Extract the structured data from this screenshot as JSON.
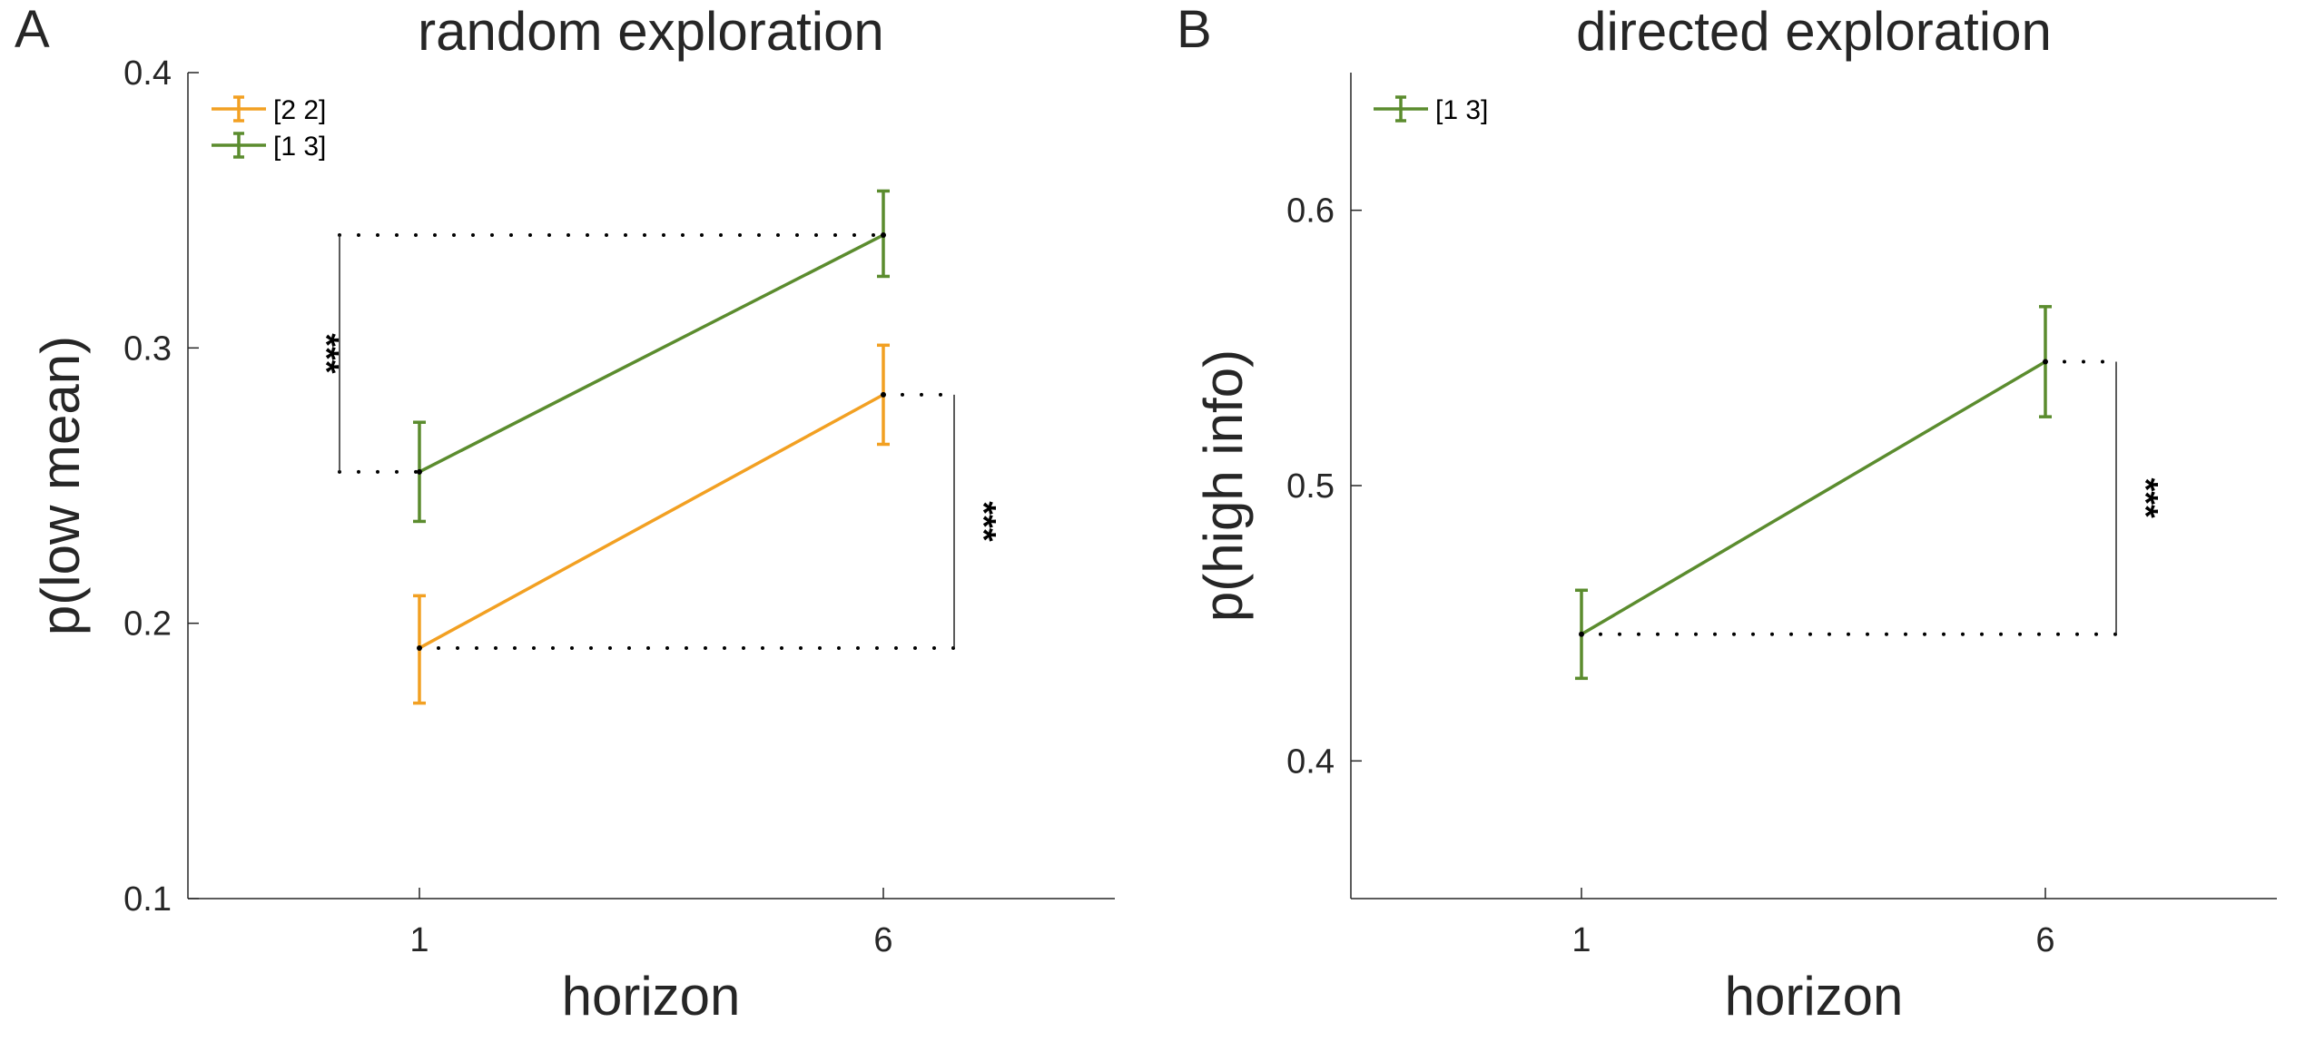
{
  "figure": {
    "panel_a_letter": "A",
    "panel_b_letter": "B"
  },
  "chart_data": [
    {
      "type": "line",
      "title": "random exploration",
      "xlabel": "horizon",
      "ylabel": "p(low mean)",
      "x_categories": [
        "1",
        "6"
      ],
      "yticks": [
        "0.1",
        "0.2",
        "0.3",
        "0.4"
      ],
      "ylim": [
        0.1,
        0.4
      ],
      "legend_position": "top-left",
      "series": [
        {
          "name": "[2 2]",
          "color": "#F2A022",
          "values": [
            0.191,
            0.283
          ],
          "err_low": [
            0.171,
            0.265
          ],
          "err_high": [
            0.21,
            0.301
          ]
        },
        {
          "name": "[1 3]",
          "color": "#5B8C2E",
          "values": [
            0.255,
            0.341
          ],
          "err_low": [
            0.237,
            0.326
          ],
          "err_high": [
            0.273,
            0.357
          ]
        }
      ],
      "annotations": [
        {
          "label": "***",
          "side": "left",
          "y_low": 0.255,
          "y_high": 0.341
        },
        {
          "label": "***",
          "side": "right",
          "y_low": 0.191,
          "y_high": 0.283
        }
      ]
    },
    {
      "type": "line",
      "title": "directed exploration",
      "xlabel": "horizon",
      "ylabel": "p(high info)",
      "x_categories": [
        "1",
        "6"
      ],
      "yticks": [
        "0.4",
        "0.5",
        "0.6"
      ],
      "ylim": [
        0.35,
        0.65
      ],
      "legend_position": "top-left",
      "series": [
        {
          "name": "[1 3]",
          "color": "#5B8C2E",
          "values": [
            0.446,
            0.545
          ],
          "err_low": [
            0.43,
            0.525
          ],
          "err_high": [
            0.462,
            0.565
          ]
        }
      ],
      "annotations": [
        {
          "label": "***",
          "side": "right",
          "y_low": 0.446,
          "y_high": 0.545
        }
      ]
    }
  ]
}
